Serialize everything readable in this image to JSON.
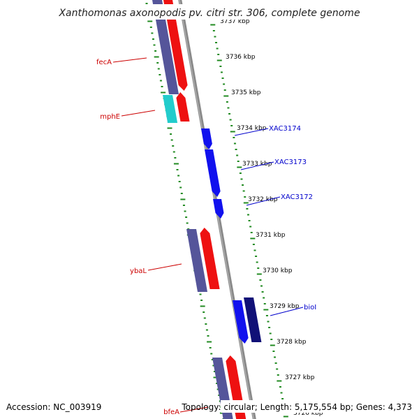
{
  "title": "Xanthomonas axonopodis pv. citri str. 306, complete genome",
  "footer": {
    "accession": "Accession: NC_003919",
    "summary": "Topology: circular; Length: 5,175,554 bp; Genes: 4,373"
  },
  "colors": {
    "background": "#ffffff",
    "backbone": "#8a8a8a",
    "tick": "#228b22",
    "forward_gene_label": "#cc0000",
    "reverse_gene_label": "#0000cc",
    "cds_slate": "#55559a",
    "cds_red": "#ee1111",
    "cds_cyan": "#22cccc",
    "cds_blue": "#1111ee",
    "cds_navy": "#111177"
  },
  "kbp_labels": [
    "3737 kbp",
    "3736 kbp",
    "3735 kbp",
    "3734 kbp",
    "3733 kbp",
    "3732 kbp",
    "3731 kbp",
    "3730 kbp",
    "3729 kbp",
    "3728 kbp",
    "3727 kbp",
    "3726 kbp"
  ],
  "forward_labels": [
    {
      "text": "fecA"
    },
    {
      "text": "mphE"
    },
    {
      "text": "ybaL"
    },
    {
      "text": "bfeA"
    }
  ],
  "reverse_labels": [
    {
      "text": "XAC3174"
    },
    {
      "text": "XAC3173"
    },
    {
      "text": "XAC3172"
    },
    {
      "text": "bioI"
    }
  ]
}
